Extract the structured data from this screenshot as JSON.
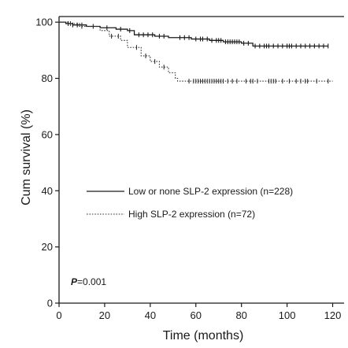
{
  "chart_data": {
    "type": "line",
    "subtype": "kaplan-meier",
    "title": "",
    "xlabel": "Time (months)",
    "ylabel": "Cum survival (%)",
    "xlim": [
      0,
      125
    ],
    "ylim": [
      0,
      102
    ],
    "xticks": [
      0,
      20,
      40,
      60,
      80,
      100,
      120
    ],
    "yticks": [
      0,
      20,
      40,
      60,
      80,
      100
    ],
    "grid": false,
    "legend_position": "center-right",
    "annotation": {
      "prefix": "P",
      "text": "=0.001"
    },
    "series": [
      {
        "name": "Low or none SLP-2 expression (n=228)",
        "line_style": "solid",
        "color": "#1a1a1a",
        "steps": [
          [
            0,
            100
          ],
          [
            3,
            99.5
          ],
          [
            6,
            99
          ],
          [
            12,
            98.5
          ],
          [
            18,
            98
          ],
          [
            25,
            97.5
          ],
          [
            30,
            97
          ],
          [
            33,
            95.5
          ],
          [
            42,
            95
          ],
          [
            48,
            94.5
          ],
          [
            58,
            94
          ],
          [
            66,
            93.5
          ],
          [
            72,
            93
          ],
          [
            80,
            92.5
          ],
          [
            85,
            91.5
          ],
          [
            118,
            91.5
          ]
        ],
        "censor_x": [
          4,
          6,
          8,
          10,
          15,
          21,
          27,
          31,
          35,
          37,
          39,
          41,
          44,
          46,
          53,
          55,
          57,
          60,
          62,
          63,
          65,
          67,
          69,
          70,
          71,
          73,
          74,
          75,
          76,
          77,
          78,
          79,
          81,
          83,
          86,
          88,
          90,
          91,
          92,
          94,
          96,
          98,
          100,
          101,
          102,
          104,
          106,
          108,
          110,
          112,
          114,
          116,
          118
        ]
      },
      {
        "name": "High SLP-2 expression (n=72)",
        "line_style": "dotted",
        "color": "#333333",
        "steps": [
          [
            0,
            100
          ],
          [
            4,
            99.5
          ],
          [
            9,
            98.5
          ],
          [
            18,
            97
          ],
          [
            22,
            95
          ],
          [
            27,
            93.5
          ],
          [
            30,
            91
          ],
          [
            36,
            88
          ],
          [
            40,
            86
          ],
          [
            44,
            84
          ],
          [
            48,
            82
          ],
          [
            51,
            80
          ],
          [
            52,
            79
          ],
          [
            120,
            79
          ]
        ],
        "censor_x": [
          5,
          10,
          15,
          23,
          26,
          34,
          38,
          42,
          46,
          57,
          59,
          60,
          61,
          62,
          63,
          64,
          65,
          66,
          67,
          68,
          69,
          70,
          71,
          72,
          74,
          76,
          78,
          82,
          84,
          85,
          87,
          92,
          93,
          94,
          95,
          98,
          101,
          104,
          106,
          108,
          109,
          113,
          118
        ]
      }
    ]
  }
}
